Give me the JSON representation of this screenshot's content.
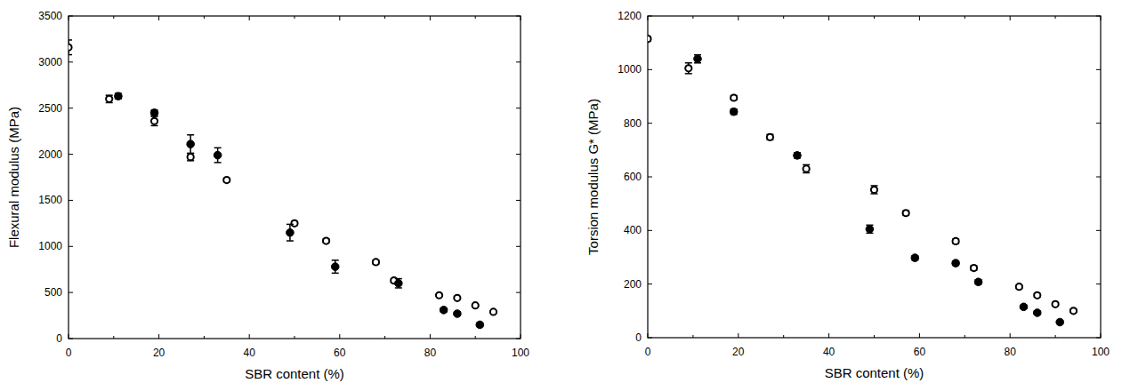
{
  "chart_data": [
    {
      "type": "scatter",
      "x_label": "SBR content (%)",
      "y_label": "Flexural modulus (MPa)",
      "xlim": [
        0,
        100
      ],
      "xticks": [
        0,
        20,
        40,
        60,
        80,
        100
      ],
      "ylim": [
        0,
        3500
      ],
      "yticks": [
        0,
        500,
        1000,
        1500,
        2000,
        2500,
        3000,
        3500
      ],
      "grid": false,
      "series": [
        {
          "color": "#000000",
          "marker": "circle-open",
          "x": [
            0,
            9,
            19,
            27,
            35,
            50,
            57,
            68,
            72,
            82,
            86,
            90,
            94
          ],
          "values": [
            3160,
            2600,
            2360,
            1970,
            1720,
            1250,
            1060,
            830,
            630,
            470,
            440,
            360,
            290
          ],
          "errors": [
            80,
            40,
            50,
            40,
            20,
            20,
            20,
            20,
            20,
            10,
            10,
            10,
            10
          ]
        },
        {
          "color": "#000000",
          "marker": "circle",
          "x": [
            11,
            19,
            27,
            33,
            49,
            59,
            73,
            83,
            86,
            91
          ],
          "values": [
            2630,
            2450,
            2110,
            1990,
            1150,
            780,
            600,
            310,
            270,
            150
          ],
          "errors": [
            30,
            30,
            100,
            80,
            90,
            70,
            50,
            20,
            20,
            20
          ]
        }
      ]
    },
    {
      "type": "scatter",
      "x_label": "SBR content (%)",
      "y_label": "Torsion modulus G* (MPa)",
      "xlim": [
        0,
        100
      ],
      "xticks": [
        0,
        20,
        40,
        60,
        80,
        100
      ],
      "ylim": [
        0,
        1200
      ],
      "yticks": [
        0,
        200,
        400,
        600,
        800,
        1000,
        1200
      ],
      "grid": false,
      "series": [
        {
          "color": "#000000",
          "marker": "circle-open",
          "x": [
            0,
            9,
            19,
            27,
            35,
            50,
            57,
            68,
            72,
            82,
            86,
            90,
            94
          ],
          "values": [
            1115,
            1005,
            895,
            748,
            630,
            552,
            465,
            360,
            260,
            190,
            158,
            125,
            100
          ],
          "errors": [
            8,
            20,
            8,
            10,
            15,
            15,
            8,
            8,
            8,
            6,
            6,
            6,
            6
          ]
        },
        {
          "color": "#000000",
          "marker": "circle",
          "x": [
            11,
            19,
            33,
            49,
            59,
            68,
            73,
            83,
            86,
            91
          ],
          "values": [
            1040,
            843,
            680,
            405,
            298,
            278,
            208,
            115,
            93,
            58
          ],
          "errors": [
            15,
            10,
            10,
            15,
            8,
            8,
            8,
            6,
            6,
            6
          ]
        }
      ]
    }
  ]
}
